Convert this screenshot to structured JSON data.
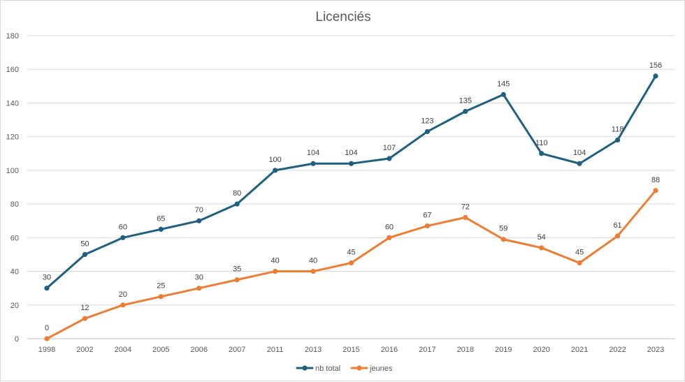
{
  "chart_data": {
    "type": "line",
    "title": "Licenciés",
    "categories": [
      "1998",
      "2002",
      "2004",
      "2005",
      "2006",
      "2007",
      "2011",
      "2013",
      "2015",
      "2016",
      "2017",
      "2018",
      "2019",
      "2020",
      "2021",
      "2022",
      "2023"
    ],
    "ylim": [
      0,
      180
    ],
    "yticks": [
      0,
      20,
      40,
      60,
      80,
      100,
      120,
      140,
      160,
      180
    ],
    "grid": true,
    "legend_position": "bottom",
    "series": [
      {
        "name": "nb total",
        "color": "#1f5f7f",
        "values": [
          30,
          50,
          60,
          65,
          70,
          80,
          100,
          104,
          104,
          107,
          123,
          135,
          145,
          110,
          104,
          118,
          156
        ]
      },
      {
        "name": "jeunes",
        "color": "#ed7d31",
        "values": [
          0,
          12,
          20,
          25,
          30,
          35,
          40,
          40,
          45,
          60,
          67,
          72,
          59,
          54,
          45,
          61,
          88
        ]
      }
    ]
  }
}
